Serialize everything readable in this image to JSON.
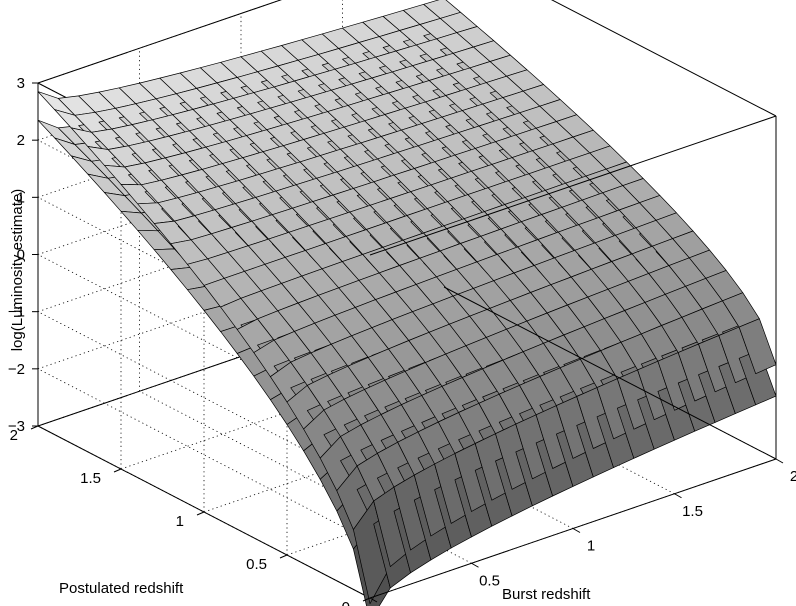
{
  "chart_data": {
    "type": "surface",
    "title": "",
    "xlabel": "Burst redshift",
    "ylabel": "Postulated redshift",
    "zlabel": "log(Luminosity estimate)",
    "xlim": [
      0,
      2
    ],
    "ylim": [
      0,
      2
    ],
    "zlim": [
      -3,
      3
    ],
    "x_ticks": [
      "0",
      "0.5",
      "1",
      "1.5",
      "2"
    ],
    "y_ticks": [
      "0",
      "0.5",
      "1",
      "1.5",
      "2"
    ],
    "z_ticks": [
      "−3",
      "−2",
      "−1",
      "0",
      "1",
      "2",
      "3"
    ],
    "grid": true,
    "colormap": "gray",
    "grid_resolution": 21,
    "series": [
      {
        "description": "upper surface",
        "corners_z": {
          "x0_y0": -3.1,
          "x2_y0": -1.35,
          "x0_y2": 2.85,
          "x2_y2": 2.05
        }
      },
      {
        "description": "lower surface",
        "corners_z": {
          "x0_y0": -3.4,
          "x2_y0": -1.9,
          "x0_y2": 2.35,
          "x2_y2": 1.5
        }
      }
    ]
  }
}
